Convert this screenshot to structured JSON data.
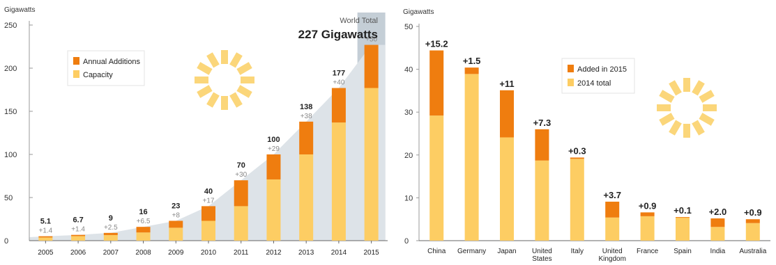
{
  "colors": {
    "addition": "#ef7d0f",
    "base": "#fdcd63",
    "area": "#dde3e8",
    "highlight": "#c4ced6",
    "sun": "#fbd67a"
  },
  "chart_data": [
    {
      "type": "bar",
      "stacked": true,
      "ylabel": "Gigawatts",
      "ylim": [
        0,
        250
      ],
      "yticks": [
        "0",
        "50",
        "100",
        "150",
        "200",
        "250"
      ],
      "categories": [
        "2005",
        "2006",
        "2007",
        "2008",
        "2009",
        "2010",
        "2011",
        "2012",
        "2013",
        "2014",
        "2015"
      ],
      "totals": [
        5.1,
        6.7,
        9,
        16,
        23,
        40,
        70,
        100,
        138,
        177,
        227
      ],
      "total_labels": [
        "5.1",
        "6.7",
        "9",
        "16",
        "23",
        "40",
        "70",
        "100",
        "138",
        "177",
        ""
      ],
      "additions": [
        1.4,
        1.4,
        2.5,
        6.5,
        8,
        17,
        30,
        29,
        38,
        40,
        50
      ],
      "addition_labels": [
        "+1.4",
        "+1.4",
        "+2.5",
        "+6.5",
        "+8",
        "+17",
        "+30",
        "+29",
        "+38",
        "+40",
        "+50"
      ],
      "legend": {
        "position": "top-left",
        "addition": "Annual Additions",
        "base": "Capacity"
      },
      "annotation": {
        "label": "World Total",
        "value": "227 Gigawatts"
      }
    },
    {
      "type": "bar",
      "stacked": true,
      "ylabel": "Gigawatts",
      "ylim": [
        0,
        50
      ],
      "yticks": [
        "0",
        "10",
        "20",
        "30",
        "40",
        "50"
      ],
      "categories": [
        [
          "China"
        ],
        [
          "Germany"
        ],
        [
          "Japan"
        ],
        [
          "United",
          "States"
        ],
        [
          "Italy"
        ],
        [
          "United",
          "Kingdom"
        ],
        [
          "France"
        ],
        [
          "Spain"
        ],
        [
          "India"
        ],
        [
          "Australia"
        ]
      ],
      "base": [
        29.2,
        38.9,
        24.1,
        18.7,
        19.1,
        5.4,
        5.7,
        5.4,
        3.2,
        4.1
      ],
      "additions": [
        15.2,
        1.5,
        11,
        7.3,
        0.3,
        3.7,
        0.9,
        0.1,
        2.0,
        0.9
      ],
      "addition_labels": [
        "+15.2",
        "+1.5",
        "+11",
        "+7.3",
        "+0.3",
        "+3.7",
        "+0.9",
        "+0.1",
        "+2.0",
        "+0.9"
      ],
      "legend": {
        "position": "top-center",
        "addition": "Added in 2015",
        "base": "2014 total"
      }
    }
  ]
}
